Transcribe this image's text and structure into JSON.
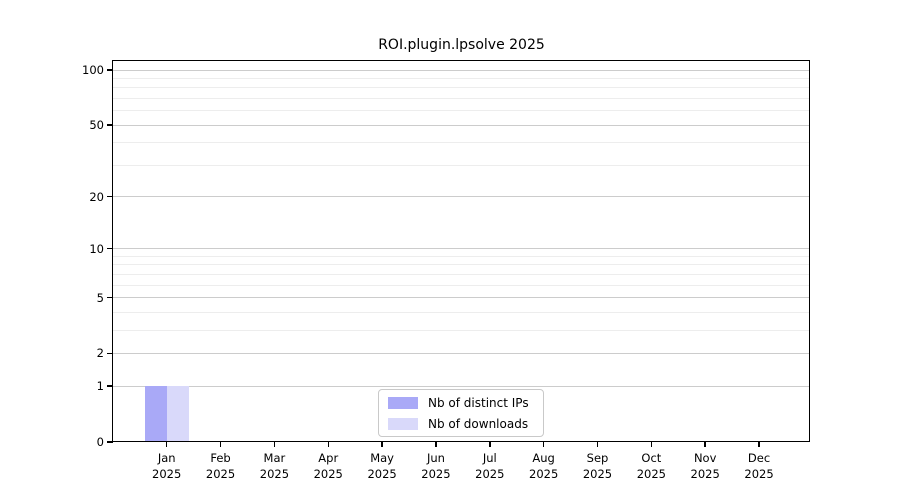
{
  "chart_data": {
    "type": "bar",
    "title": "ROI.plugin.lpsolve 2025",
    "categories": [
      "Jan",
      "Feb",
      "Mar",
      "Apr",
      "May",
      "Jun",
      "Jul",
      "Aug",
      "Sep",
      "Oct",
      "Nov",
      "Dec"
    ],
    "category_year": "2025",
    "series": [
      {
        "name": "Nb of distinct IPs",
        "color": "#a9a9f7",
        "values": [
          1,
          0,
          0,
          0,
          0,
          0,
          0,
          0,
          0,
          0,
          0,
          0
        ]
      },
      {
        "name": "Nb of downloads",
        "color": "#d9d9fa",
        "values": [
          1,
          0,
          0,
          0,
          0,
          0,
          0,
          0,
          0,
          0,
          0,
          0
        ]
      }
    ],
    "yscale": "log1p",
    "ylim": [
      0,
      100
    ],
    "yticks": [
      100,
      50,
      20,
      10,
      5,
      2,
      1,
      0
    ],
    "grid_major_values": [
      1,
      2,
      5,
      10,
      20,
      50,
      100
    ],
    "grid_minor_values": [
      3,
      4,
      6,
      7,
      8,
      9,
      30,
      40,
      60,
      70,
      80,
      90
    ],
    "grid_on": true,
    "legend_position": "bottom-center",
    "colors": {
      "grid_major": "#cccccc",
      "grid_minor": "#ededed",
      "axis": "#000000"
    }
  }
}
